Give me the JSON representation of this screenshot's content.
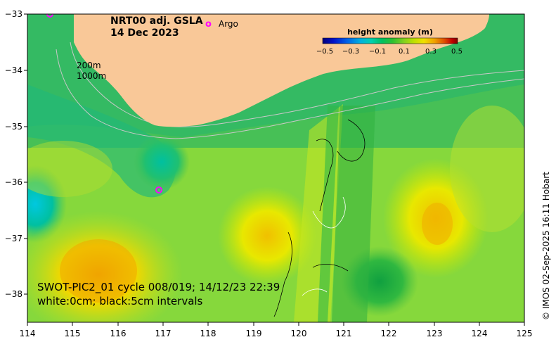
{
  "map": {
    "product_title": "NRT00 adj. GSLA",
    "date_title": "14 Dec 2023",
    "argo_legend_symbol": "o",
    "argo_legend_label": "Argo",
    "depth_label_1": "200m",
    "depth_label_2": "1000m",
    "swot_line_1": "SWOT-PIC2_01 cycle 008/019; 14/12/23 22:39",
    "swot_line_2": "white:0cm; black:5cm intervals",
    "credit": "© IMOS 02-Sep-2025 16:11 Hobart"
  },
  "colorbar": {
    "title": "height anomaly (m)",
    "ticks": [
      "−0.5",
      "−0.3",
      "−0.1",
      "0.1",
      "0.3",
      "0.5"
    ],
    "colors": [
      "#00007a",
      "#0010c8",
      "#0060e8",
      "#00b0e0",
      "#00d0b0",
      "#00c060",
      "#30c030",
      "#80d020",
      "#c0e000",
      "#f0e000",
      "#f0a000",
      "#e05000",
      "#c00000",
      "#800000"
    ]
  },
  "axes": {
    "x_ticks": [
      "114",
      "115",
      "116",
      "117",
      "118",
      "119",
      "120",
      "121",
      "122",
      "123",
      "124",
      "125"
    ],
    "y_ticks": [
      "−33",
      "−34",
      "−35",
      "−36",
      "−37",
      "−38"
    ]
  },
  "colors": {
    "land": "#f9c898",
    "ocean_base": "#7ed63a",
    "argo_marker": "#ff00ff"
  }
}
